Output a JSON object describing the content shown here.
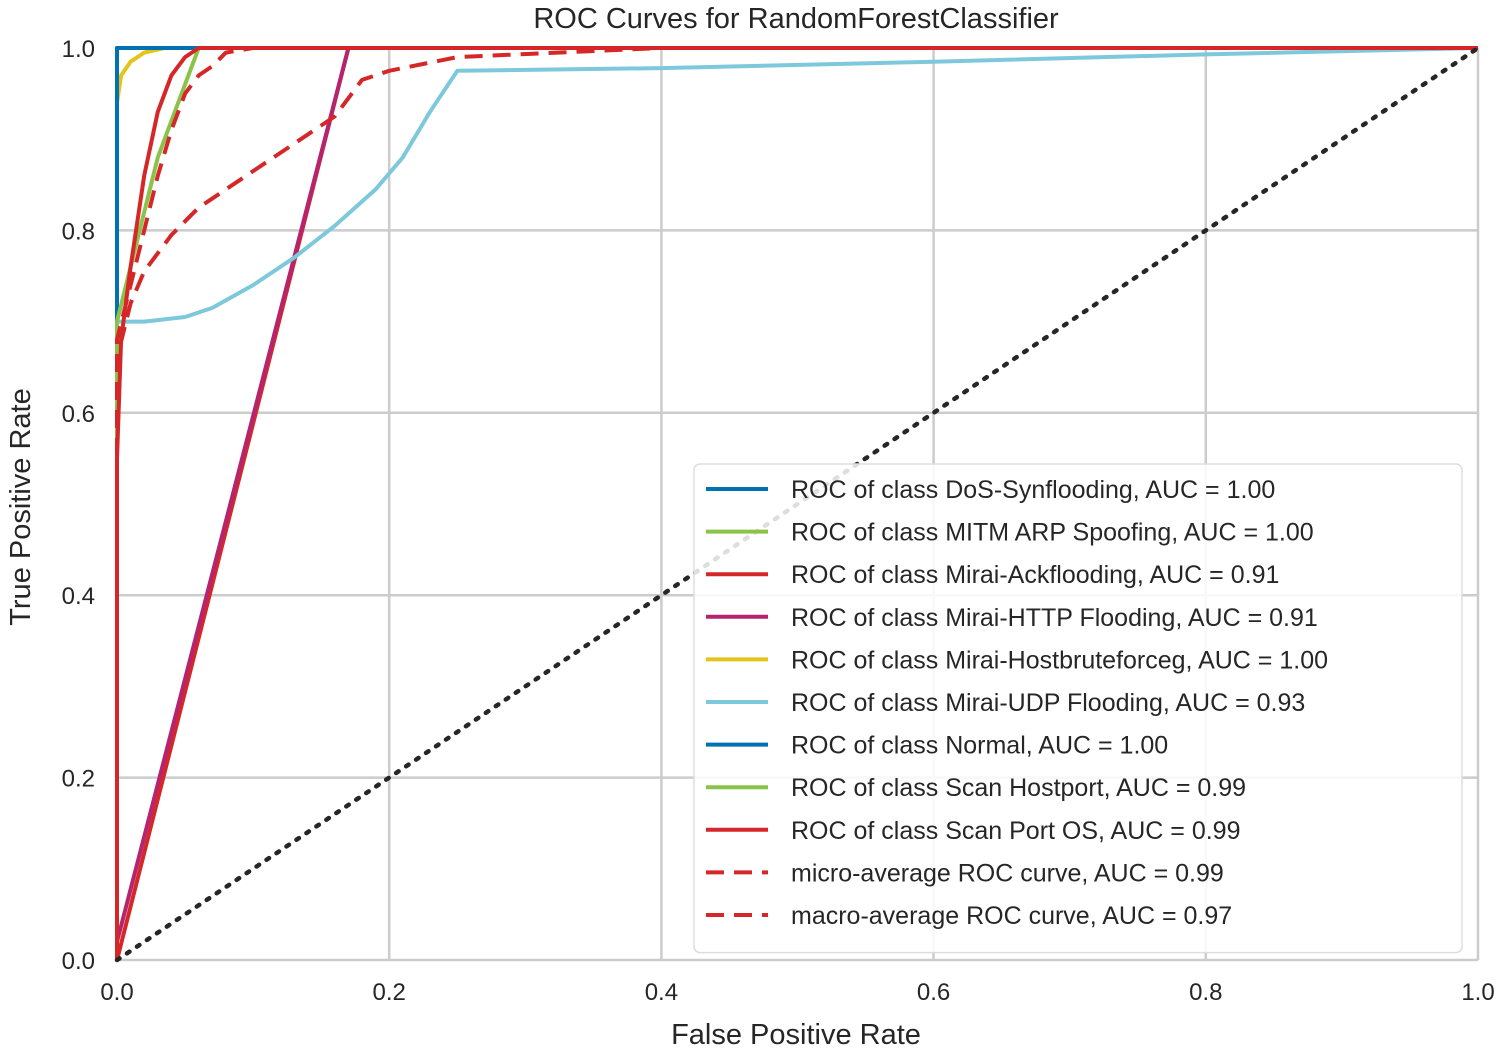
{
  "chart_data": {
    "type": "line",
    "title": "ROC Curves for RandomForestClassifier",
    "xlabel": "False Positive Rate",
    "ylabel": "True Positive Rate",
    "xlim": [
      0.0,
      1.0
    ],
    "ylim": [
      0.0,
      1.0
    ],
    "grid": true,
    "x_ticks": [
      "0.0",
      "0.2",
      "0.4",
      "0.6",
      "0.8",
      "1.0"
    ],
    "y_ticks": [
      "0.0",
      "0.2",
      "0.4",
      "0.6",
      "0.8",
      "1.0"
    ],
    "legend_position": "lower-right",
    "series": [
      {
        "name": "ROC of class DoS-Synflooding, AUC = 1.00",
        "color": "#0072b2",
        "dash": "solid",
        "x": [
          0,
          0.0,
          1.0
        ],
        "y": [
          0,
          1.0,
          1.0
        ]
      },
      {
        "name": "ROC of class MITM ARP Spoofing, AUC = 1.00",
        "color": "#8bc34a",
        "dash": "solid",
        "x": [
          0,
          0.0,
          1.0
        ],
        "y": [
          0,
          1.0,
          1.0
        ]
      },
      {
        "name": "ROC of class Mirai-Ackflooding, AUC = 0.91",
        "color": "#d62728",
        "dash": "solid",
        "x": [
          0,
          0.0,
          0.17,
          1.0
        ],
        "y": [
          0,
          0.0,
          1.0,
          1.0
        ]
      },
      {
        "name": "ROC of class Mirai-HTTP Flooding, AUC = 0.91",
        "color": "#b5246e",
        "dash": "solid",
        "x": [
          0,
          0.17,
          1.0
        ],
        "y": [
          0.02,
          1.0,
          1.0
        ]
      },
      {
        "name": "ROC of class Mirai-Hostbruteforceg, AUC = 1.00",
        "color": "#e3c41a",
        "dash": "solid",
        "x": [
          0,
          0.0,
          0.003,
          0.01,
          0.02,
          0.035,
          1.0
        ],
        "y": [
          0,
          0.94,
          0.97,
          0.985,
          0.995,
          1.0,
          1.0
        ]
      },
      {
        "name": "ROC of class Mirai-UDP Flooding, AUC = 0.93",
        "color": "#7ec8dc",
        "dash": "solid",
        "x": [
          0,
          0.0,
          0.02,
          0.05,
          0.07,
          0.1,
          0.13,
          0.16,
          0.19,
          0.21,
          0.23,
          0.25,
          0.4,
          0.6,
          0.8,
          1.0
        ],
        "y": [
          0,
          0.7,
          0.7,
          0.705,
          0.715,
          0.74,
          0.77,
          0.805,
          0.845,
          0.88,
          0.93,
          0.975,
          0.978,
          0.985,
          0.993,
          1.0
        ]
      },
      {
        "name": "ROC of class Normal, AUC = 1.00",
        "color": "#0072b2",
        "dash": "solid",
        "x": [
          0,
          0.0,
          1.0
        ],
        "y": [
          0,
          1.0,
          1.0
        ]
      },
      {
        "name": "ROC of class Scan Hostport, AUC = 0.99",
        "color": "#8bc34a",
        "dash": "solid",
        "x": [
          0,
          0.0,
          0.01,
          0.02,
          0.03,
          0.045,
          0.06,
          1.0
        ],
        "y": [
          0,
          0.7,
          0.76,
          0.82,
          0.88,
          0.94,
          1.0,
          1.0
        ]
      },
      {
        "name": "ROC of class Scan Port OS, AUC = 0.99",
        "color": "#d62728",
        "dash": "solid",
        "x": [
          0,
          0.0,
          0.003,
          0.01,
          0.02,
          0.03,
          0.04,
          0.05,
          0.06,
          1.0
        ],
        "y": [
          0,
          0.55,
          0.68,
          0.76,
          0.86,
          0.93,
          0.97,
          0.99,
          1.0,
          1.0
        ]
      },
      {
        "name": "micro-average ROC curve, AUC = 0.99",
        "color": "#d62728",
        "dash": "dashed",
        "x": [
          0,
          0.0,
          0.01,
          0.02,
          0.03,
          0.04,
          0.05,
          0.06,
          0.07,
          0.08,
          0.1,
          0.2,
          0.4,
          0.6,
          0.8,
          1.0
        ],
        "y": [
          0,
          0.68,
          0.74,
          0.8,
          0.86,
          0.91,
          0.95,
          0.97,
          0.98,
          0.995,
          1.0,
          1.0,
          1.0,
          1.0,
          1.0,
          1.0
        ]
      },
      {
        "name": "macro-average ROC curve, AUC = 0.97",
        "color": "#d62728",
        "dash": "dashed",
        "x": [
          0,
          0.0,
          0.01,
          0.02,
          0.04,
          0.06,
          0.08,
          0.1,
          0.13,
          0.16,
          0.18,
          0.2,
          0.25,
          0.4,
          0.6,
          0.8,
          1.0
        ],
        "y": [
          0,
          0.66,
          0.72,
          0.755,
          0.795,
          0.825,
          0.845,
          0.865,
          0.895,
          0.925,
          0.965,
          0.975,
          0.99,
          1.0,
          1.0,
          1.0,
          1.0
        ]
      },
      {
        "name": "",
        "color": "#262626",
        "dash": "dotted",
        "x": [
          0.0,
          1.0
        ],
        "y": [
          0.0,
          1.0
        ],
        "legend": false
      }
    ]
  }
}
